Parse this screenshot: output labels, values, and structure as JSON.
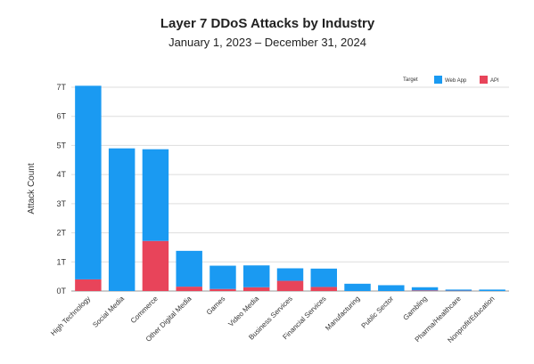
{
  "chart_data": {
    "type": "bar",
    "stacked": true,
    "title": "Layer 7 DDoS Attacks by Industry",
    "subtitle": "January 1, 2023 – December 31, 2024",
    "ylabel": "Attack Count",
    "xlabel": "",
    "ylim": [
      0,
      7
    ],
    "yticks": [
      "0T",
      "1T",
      "2T",
      "3T",
      "4T",
      "5T",
      "6T",
      "7T"
    ],
    "grid": true,
    "legend": {
      "placement": "top-right",
      "title": "Target",
      "entries": [
        {
          "name": "Web App",
          "color": "#1a9af2"
        },
        {
          "name": "API",
          "color": "#e8445a"
        }
      ]
    },
    "categories": [
      "High Technology",
      "Social Media",
      "Commerce",
      "Other Digital Media",
      "Games",
      "Video Media",
      "Business Services",
      "Financial Services",
      "Manufacturing",
      "Public Sector",
      "Gambling",
      "Pharma/Healthcare",
      "Nonprofit/Education"
    ],
    "series": [
      {
        "name": "Web App",
        "color": "#1a9af2",
        "values": [
          6.65,
          4.9,
          3.15,
          1.23,
          0.8,
          0.75,
          0.43,
          0.63,
          0.25,
          0.2,
          0.11,
          0.04,
          0.05
        ]
      },
      {
        "name": "API",
        "color": "#e8445a",
        "values": [
          0.4,
          0.0,
          1.72,
          0.15,
          0.07,
          0.13,
          0.35,
          0.14,
          0.0,
          0.0,
          0.02,
          0.01,
          0.0
        ]
      }
    ]
  }
}
